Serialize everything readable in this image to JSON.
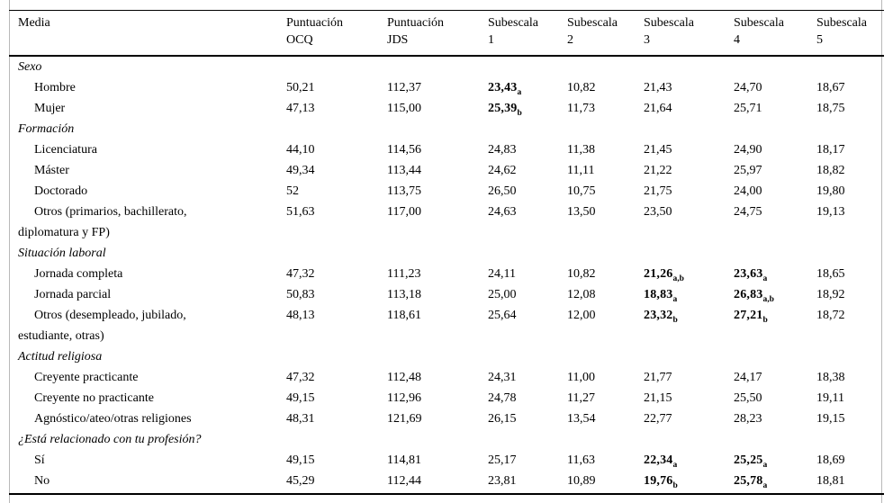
{
  "colors": {
    "text": "#000000",
    "rule": "#000000",
    "page_frame": "#b9b9b9",
    "background": "#ffffff"
  },
  "table": {
    "header": {
      "columns": [
        {
          "id": "media",
          "lines": [
            "Media"
          ]
        },
        {
          "id": "ocq",
          "lines": [
            "Puntuación",
            "OCQ"
          ]
        },
        {
          "id": "jds",
          "lines": [
            "Puntuación",
            "JDS"
          ]
        },
        {
          "id": "sub1",
          "lines": [
            "Subescala",
            "1"
          ]
        },
        {
          "id": "sub2",
          "lines": [
            "Subescala",
            "2"
          ]
        },
        {
          "id": "sub3",
          "lines": [
            "Subescala",
            "3"
          ]
        },
        {
          "id": "sub4",
          "lines": [
            "Subescala",
            "4"
          ]
        },
        {
          "id": "sub5",
          "lines": [
            "Subescala",
            "5"
          ]
        }
      ]
    },
    "sections": [
      {
        "title": "Sexo",
        "rows": [
          {
            "label": "Hombre",
            "cells": [
              "50,21",
              "112,37",
              {
                "v": "23,43",
                "sub": "a"
              },
              "10,82",
              "21,43",
              "24,70",
              "18,67"
            ]
          },
          {
            "label": "Mujer",
            "cells": [
              "47,13",
              "115,00",
              {
                "v": "25,39",
                "sub": "b"
              },
              "11,73",
              "21,64",
              "25,71",
              "18,75"
            ]
          }
        ]
      },
      {
        "title": "Formación",
        "rows": [
          {
            "label": "Licenciatura",
            "cells": [
              "44,10",
              "114,56",
              "24,83",
              "11,38",
              "21,45",
              "24,90",
              "18,17"
            ]
          },
          {
            "label": "Máster",
            "cells": [
              "49,34",
              "113,44",
              "24,62",
              "11,11",
              "21,22",
              "25,97",
              "18,82"
            ]
          },
          {
            "label": "Doctorado",
            "cells": [
              "52",
              "113,75",
              "26,50",
              "10,75",
              "21,75",
              "24,00",
              "19,80"
            ]
          },
          {
            "label": [
              "Otros (primarios, bachillerato,",
              "diplomatura y FP)"
            ],
            "cells": [
              "51,63",
              "117,00",
              "24,63",
              "13,50",
              "23,50",
              "24,75",
              "19,13"
            ]
          }
        ]
      },
      {
        "title": "Situación laboral",
        "rows": [
          {
            "label": "Jornada completa",
            "cells": [
              "47,32",
              "111,23",
              "24,11",
              "10,82",
              {
                "v": "21,26",
                "sub": "a,b"
              },
              {
                "v": "23,63",
                "sub": "a"
              },
              "18,65"
            ]
          },
          {
            "label": "Jornada parcial",
            "cells": [
              "50,83",
              "113,18",
              "25,00",
              "12,08",
              {
                "v": "18,83",
                "sub": "a"
              },
              {
                "v": "26,83",
                "sub": "a,b"
              },
              "18,92"
            ]
          },
          {
            "label": [
              "Otros (desempleado, jubilado,",
              "estudiante, otras)"
            ],
            "cells": [
              "48,13",
              "118,61",
              "25,64",
              "12,00",
              {
                "v": "23,32",
                "sub": "b"
              },
              {
                "v": "27,21",
                "sub": "b"
              },
              "18,72"
            ]
          }
        ]
      },
      {
        "title": "Actitud religiosa",
        "rows": [
          {
            "label": "Creyente practicante",
            "cells": [
              "47,32",
              "112,48",
              "24,31",
              "11,00",
              "21,77",
              "24,17",
              "18,38"
            ]
          },
          {
            "label": "Creyente no practicante",
            "cells": [
              "49,15",
              "112,96",
              "24,78",
              "11,27",
              "21,15",
              "25,50",
              "19,11"
            ]
          },
          {
            "label": "Agnóstico/ateo/otras religiones",
            "cells": [
              "48,31",
              "121,69",
              "26,15",
              "13,54",
              "22,77",
              "28,23",
              "19,15"
            ]
          }
        ]
      },
      {
        "title": "¿Está relacionado con tu profesión?",
        "rows": [
          {
            "label": "Sí",
            "cells": [
              "49,15",
              "114,81",
              "25,17",
              "11,63",
              {
                "v": "22,34",
                "sub": "a"
              },
              {
                "v": "25,25",
                "sub": "a"
              },
              "18,69"
            ]
          },
          {
            "label": "No",
            "cells": [
              "45,29",
              "112,44",
              "23,81",
              "10,89",
              {
                "v": "19,76",
                "sub": "b"
              },
              {
                "v": "25,78",
                "sub": "a"
              },
              "18,81"
            ]
          }
        ]
      }
    ]
  }
}
